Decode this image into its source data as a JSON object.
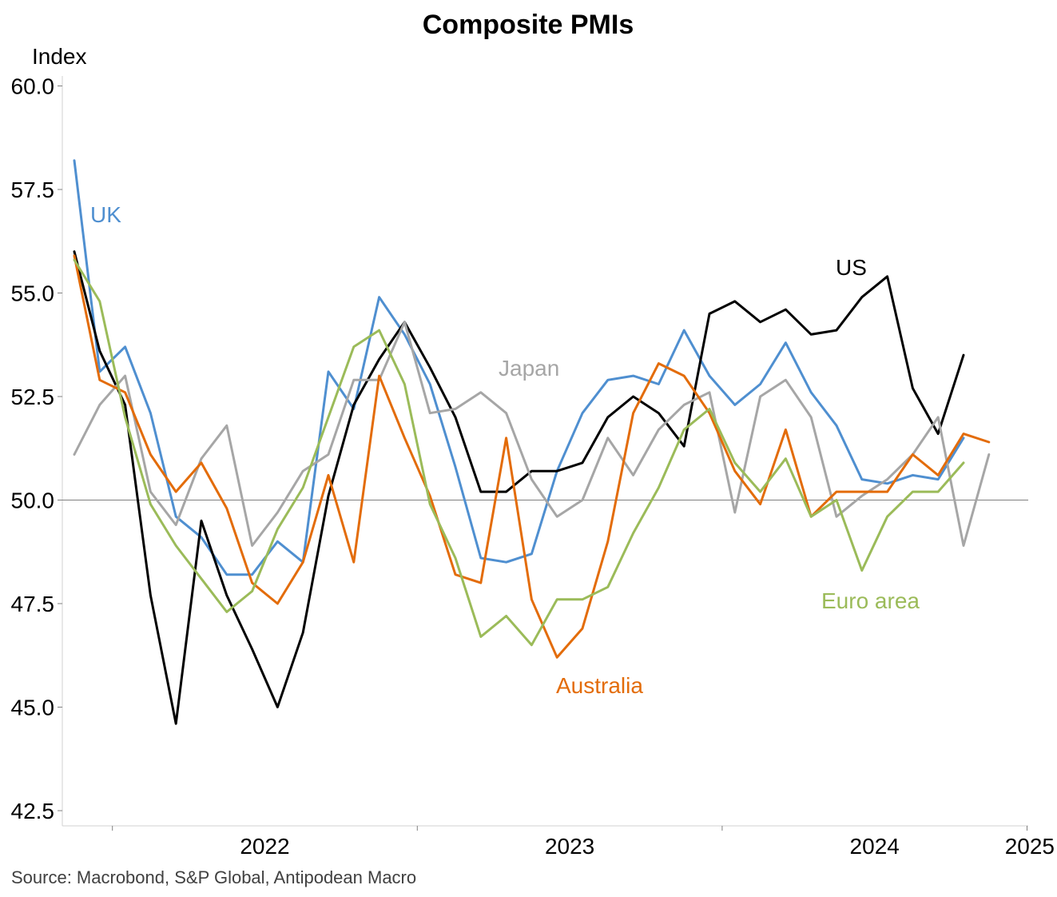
{
  "chart_data": {
    "type": "line",
    "title": "Composite PMIs",
    "ylabel": "Index",
    "xlabel": "",
    "ylim": [
      42.5,
      60.0
    ],
    "yticks": [
      "42.5",
      "45.0",
      "47.5",
      "50.0",
      "52.5",
      "55.0",
      "57.5",
      "60.0"
    ],
    "xticks": [
      "2022",
      "2023",
      "2024",
      "2025"
    ],
    "reference_line": 50.0,
    "grid": false,
    "source": "Source: Macrobond, S&P Global, Antipodean Macro",
    "months": [
      "2021-11",
      "2021-12",
      "2022-01",
      "2022-02",
      "2022-03",
      "2022-04",
      "2022-05",
      "2022-06",
      "2022-07",
      "2022-08",
      "2022-09",
      "2022-10",
      "2022-11",
      "2022-12",
      "2023-01",
      "2023-02",
      "2023-03",
      "2023-04",
      "2023-05",
      "2023-06",
      "2023-07",
      "2023-08",
      "2023-09",
      "2023-10",
      "2023-11",
      "2023-12",
      "2024-01",
      "2024-02",
      "2024-03",
      "2024-04",
      "2024-05",
      "2024-06",
      "2024-07",
      "2024-08",
      "2024-09",
      "2024-10",
      "2024-11",
      "2024-12",
      "2025-01"
    ],
    "series": [
      {
        "name": "UK",
        "color": "#4f8fd0",
        "values": [
          58.2,
          53.1,
          53.7,
          52.1,
          49.6,
          49.1,
          48.2,
          48.2,
          49.0,
          48.5,
          53.1,
          52.2,
          54.9,
          54.0,
          52.8,
          50.8,
          48.6,
          48.5,
          48.7,
          50.7,
          52.1,
          52.9,
          53.0,
          52.8,
          54.1,
          53.0,
          52.3,
          52.8,
          53.8,
          52.6,
          51.8,
          50.5,
          50.4,
          50.6,
          50.5,
          51.5,
          null,
          null,
          null
        ]
      },
      {
        "name": "US",
        "color": "#000000",
        "values": [
          56.0,
          53.6,
          52.3,
          47.7,
          44.6,
          49.5,
          47.7,
          46.4,
          45.0,
          46.8,
          50.1,
          52.3,
          53.4,
          54.3,
          53.2,
          52.0,
          50.2,
          50.2,
          50.7,
          50.7,
          50.9,
          52.0,
          52.5,
          52.1,
          51.3,
          54.5,
          54.8,
          54.3,
          54.6,
          54.0,
          54.1,
          54.9,
          55.4,
          52.7,
          51.6,
          53.5,
          null,
          null,
          null
        ]
      },
      {
        "name": "Japan",
        "color": "#a6a6a6",
        "values": [
          51.1,
          52.3,
          53.0,
          50.2,
          49.4,
          51.0,
          51.8,
          48.9,
          49.7,
          50.7,
          51.1,
          52.9,
          52.9,
          54.3,
          52.1,
          52.2,
          52.6,
          52.1,
          50.5,
          49.6,
          50.0,
          51.5,
          50.6,
          51.7,
          52.3,
          52.6,
          49.7,
          52.5,
          52.9,
          52.0,
          49.6,
          50.1,
          50.5,
          51.1,
          52.0,
          48.9,
          51.1,
          null,
          null
        ]
      },
      {
        "name": "Australia",
        "color": "#e36c0a",
        "values": [
          55.9,
          52.9,
          52.6,
          51.1,
          50.2,
          50.9,
          49.8,
          48.0,
          47.5,
          48.5,
          50.6,
          48.5,
          53.0,
          51.5,
          50.1,
          48.2,
          48.0,
          51.5,
          47.6,
          46.2,
          46.9,
          49.0,
          52.1,
          53.3,
          53.0,
          52.1,
          50.7,
          49.9,
          51.7,
          49.6,
          50.2,
          50.2,
          50.2,
          51.1,
          50.6,
          51.6,
          51.4,
          null,
          null
        ]
      },
      {
        "name": "Euro area",
        "color": "#9bbb59",
        "values": [
          55.8,
          54.8,
          52.0,
          49.9,
          48.9,
          48.1,
          47.3,
          47.8,
          49.3,
          50.3,
          52.0,
          53.7,
          54.1,
          52.8,
          49.9,
          48.6,
          46.7,
          47.2,
          46.5,
          47.6,
          47.6,
          47.9,
          49.2,
          50.3,
          51.7,
          52.2,
          50.9,
          50.2,
          51.0,
          49.6,
          50.0,
          48.3,
          49.6,
          50.2,
          50.2,
          50.9,
          null,
          null,
          null
        ]
      }
    ],
    "series_labels": [
      {
        "name": "UK",
        "color": "#4f8fd0"
      },
      {
        "name": "US",
        "color": "#000000"
      },
      {
        "name": "Japan",
        "color": "#a6a6a6"
      },
      {
        "name": "Australia",
        "color": "#e36c0a"
      },
      {
        "name": "Euro area",
        "color": "#9bbb59"
      }
    ]
  }
}
